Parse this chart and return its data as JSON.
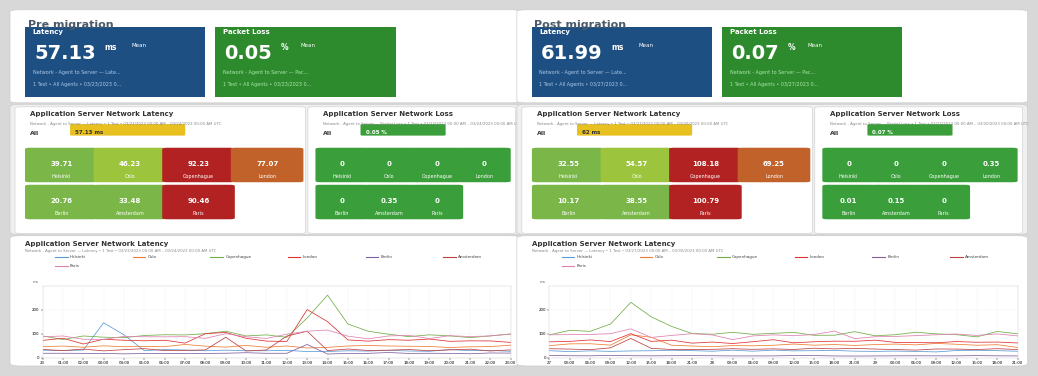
{
  "pre_title": "Pre migration",
  "post_title": "Post migration",
  "pre_latency": "57.13",
  "pre_latency_unit": "ms",
  "pre_packet_loss": "0.05",
  "pre_packet_loss_unit": "%",
  "pre_latency_subtitle1": "Network - Agent to Server — Late...",
  "pre_latency_subtitle2": "1 Test • All Agents • 03/23/2023 0...",
  "pre_packet_loss_subtitle1": "Network - Agent to Server — Pac...",
  "pre_packet_loss_subtitle2": "1 Test • All Agents • 03/23/2023 0...",
  "post_latency": "61.99",
  "post_latency_unit": "ms",
  "post_packet_loss": "0.07",
  "post_packet_loss_unit": "%",
  "post_latency_subtitle1": "Network - Agent to Server — Late...",
  "post_latency_subtitle2": "1 Test • All Agents • 03/27/2023 0...",
  "post_packet_loss_subtitle1": "Network - Agent to Server — Pac...",
  "post_packet_loss_subtitle2": "1 Test • All Agents • 03/27/2023 0...",
  "pre_latency_all": "57.13 ms",
  "pre_loss_all": "0.05 %",
  "post_latency_all": "62 ms",
  "post_loss_all": "0.07 %",
  "latency_section_title": "Application Server Network Latency",
  "loss_section_title": "Application Server Network Loss",
  "pre_latency_subtitle": "Network - Agent to Server — Latency • 1 Test • 03/23/2023 00:00 AM – 03/24/2023 00:00 AM UTC",
  "pre_loss_subtitle": "Network - Agent to Server — Packet Loss • 1 Test • 03/23/2023 00:00 AM – 03/24/2023 00:00 AM UTC",
  "post_latency_subtitle": "Network - Agent to Server — Latency • 1 Test • 03/27/2023 00:00 AM – 03/30/2023 00:00 AM UTC",
  "post_loss_subtitle": "Network - Agent to Server — Packet Loss • 1 Test • 03/27/2023 00:00 AM – 03/30/2023 00:00 AM UTC",
  "pre_lat_chart_subtitle": "Network - Agent to Server — Latency • 1 Test • 03/23/2023 00:00 AM – 03/24/2023 00:00 AM UTC",
  "post_lat_chart_subtitle": "Network - Agent to Server — Latency • 1 Test • 03/27/2023 00:00 AM – 03/30/2023 00:00 AM UTC",
  "pre_latency_grid": {
    "row1": [
      {
        "val": "39.71",
        "city": "Helsinki",
        "color": "#7ab648"
      },
      {
        "val": "46.23",
        "city": "Oslo",
        "color": "#9dc43d"
      },
      {
        "val": "92.23",
        "city": "Copenhague",
        "color": "#b22222"
      },
      {
        "val": "77.07",
        "city": "London",
        "color": "#c0622a"
      }
    ],
    "row2": [
      {
        "val": "20.76",
        "city": "Berlin",
        "color": "#7ab648"
      },
      {
        "val": "33.48",
        "city": "Amsterdam",
        "color": "#7ab648"
      },
      {
        "val": "90.46",
        "city": "Paris",
        "color": "#b22222"
      }
    ]
  },
  "pre_loss_grid": {
    "row1": [
      {
        "val": "0",
        "city": "Helsinki",
        "color": "#3a9e3a"
      },
      {
        "val": "0",
        "city": "Oslo",
        "color": "#3a9e3a"
      },
      {
        "val": "0",
        "city": "Copenhague",
        "color": "#3a9e3a"
      },
      {
        "val": "0",
        "city": "London",
        "color": "#3a9e3a"
      }
    ],
    "row2": [
      {
        "val": "0",
        "city": "Berlin",
        "color": "#3a9e3a"
      },
      {
        "val": "0.35",
        "city": "Amsterdam",
        "color": "#3a9e3a"
      },
      {
        "val": "0",
        "city": "Paris",
        "color": "#3a9e3a"
      }
    ]
  },
  "post_latency_grid": {
    "row1": [
      {
        "val": "32.55",
        "city": "Helsinki",
        "color": "#7ab648"
      },
      {
        "val": "54.57",
        "city": "Oslo",
        "color": "#9dc43d"
      },
      {
        "val": "108.18",
        "city": "Copenhague",
        "color": "#b22222"
      },
      {
        "val": "69.25",
        "city": "London",
        "color": "#c0622a"
      }
    ],
    "row2": [
      {
        "val": "10.17",
        "city": "Berlin",
        "color": "#7ab648"
      },
      {
        "val": "38.55",
        "city": "Amsterdam",
        "color": "#7ab648"
      },
      {
        "val": "100.79",
        "city": "Paris",
        "color": "#b22222"
      }
    ]
  },
  "post_loss_grid": {
    "row1": [
      {
        "val": "0",
        "city": "Helsinki",
        "color": "#3a9e3a"
      },
      {
        "val": "0",
        "city": "Oslo",
        "color": "#3a9e3a"
      },
      {
        "val": "0",
        "city": "Copenhague",
        "color": "#3a9e3a"
      },
      {
        "val": "0.35",
        "city": "London",
        "color": "#3a9e3a"
      }
    ],
    "row2": [
      {
        "val": "0.01",
        "city": "Berlin",
        "color": "#3a9e3a"
      },
      {
        "val": "0.15",
        "city": "Amsterdam",
        "color": "#3a9e3a"
      },
      {
        "val": "0",
        "city": "Paris",
        "color": "#3a9e3a"
      }
    ]
  },
  "latency_card_bg": "#1e4f82",
  "loss_card_bg": "#2d8a2d",
  "bg_color": "#d8d8d8",
  "panel_bg": "#ffffff",
  "colors": {
    "Helsinki": "#5b9bd5",
    "Oslo": "#ed7d31",
    "Copenhague": "#70ad47",
    "London": "#e03030",
    "Berlin": "#8060a0",
    "Amsterdam": "#c04040",
    "Paris": "#e080b0"
  },
  "pre_chart_xticks": [
    "23",
    "01:00",
    "02:00",
    "03:00",
    "04:00",
    "05:00",
    "06:00",
    "07:00",
    "08:00",
    "09:00",
    "10:00",
    "11:00",
    "12:00",
    "13:00",
    "14:00",
    "15:00",
    "16:00",
    "17:00",
    "18:00",
    "19:00",
    "20:00",
    "21:00",
    "22:00",
    "23:00"
  ],
  "post_chart_xticks": [
    "27",
    "03:00",
    "06:00",
    "09:00",
    "12:00",
    "15:00",
    "18:00",
    "21:00",
    "28",
    "03:00",
    "06:00",
    "09:00",
    "12:00",
    "15:00",
    "18:00",
    "21:00",
    "29",
    "03:00",
    "06:00",
    "09:00",
    "12:00",
    "15:00",
    "18:00",
    "21:00"
  ]
}
